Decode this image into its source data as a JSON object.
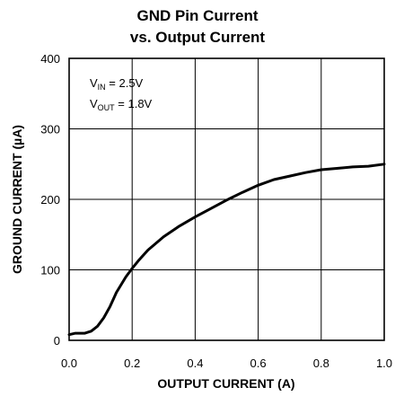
{
  "chart_data": {
    "type": "line",
    "title_line1": "GND Pin Current",
    "title_line2": "vs. Output Current",
    "xlabel": "OUTPUT CURRENT (A)",
    "ylabel": "GROUND CURRENT (µA)",
    "xlim": [
      0,
      1.0
    ],
    "ylim": [
      0,
      400
    ],
    "xticks": [
      "0.0",
      "0.2",
      "0.4",
      "0.6",
      "0.8",
      "1.0"
    ],
    "yticks": [
      "0",
      "100",
      "200",
      "300",
      "400"
    ],
    "grid": true,
    "annotations": {
      "vin": {
        "main": "V",
        "sub": "IN",
        "value": " = 2.5V"
      },
      "vout": {
        "main": "V",
        "sub": "OUT",
        "value": " = 1.8V"
      }
    },
    "series": [
      {
        "x": [
          0.0,
          0.02,
          0.05,
          0.07,
          0.09,
          0.11,
          0.13,
          0.15,
          0.18,
          0.2,
          0.22,
          0.25,
          0.3,
          0.35,
          0.4,
          0.45,
          0.5,
          0.55,
          0.6,
          0.65,
          0.7,
          0.75,
          0.8,
          0.85,
          0.9,
          0.95,
          1.0
        ],
        "y": [
          8,
          10,
          10,
          13,
          20,
          32,
          48,
          68,
          90,
          102,
          113,
          128,
          147,
          162,
          175,
          187,
          199,
          210,
          220,
          228,
          233,
          238,
          242,
          244,
          246,
          247,
          250
        ]
      }
    ]
  }
}
